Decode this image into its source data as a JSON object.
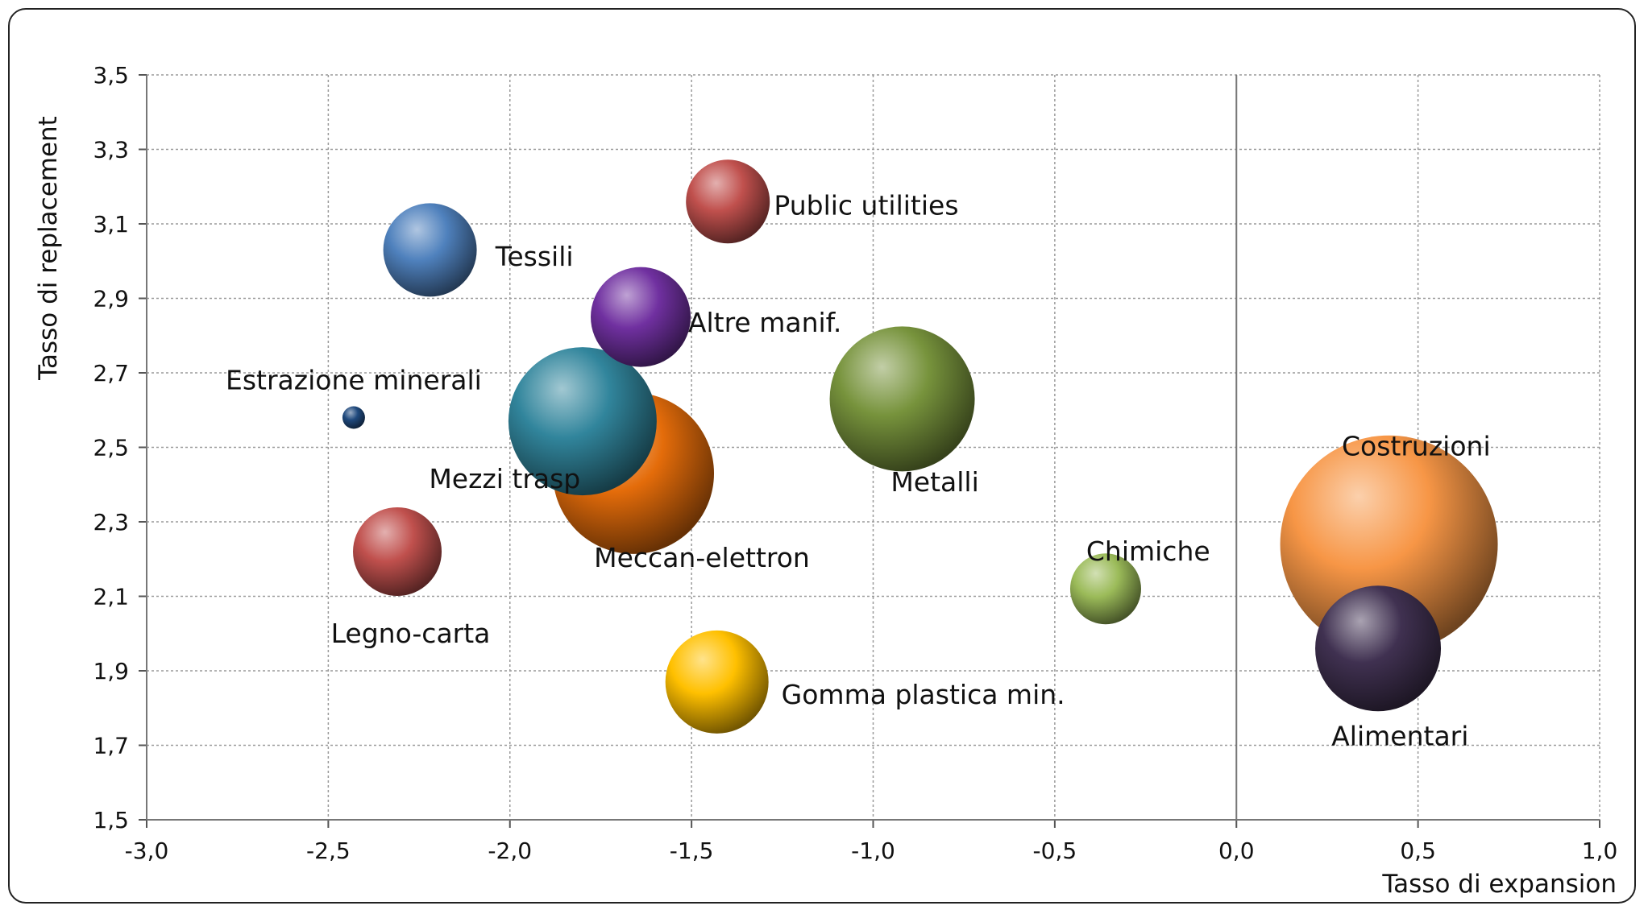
{
  "chart_data": {
    "type": "bubble",
    "xlabel": "Tasso di expansion",
    "ylabel": "Tasso di replacement",
    "xlim": [
      -3.0,
      1.0
    ],
    "ylim": [
      1.5,
      3.5
    ],
    "x_ticks": [
      "-3,0",
      "-2,5",
      "-2,0",
      "-1,5",
      "-1,0",
      "-0,5",
      "0,0",
      "0,5",
      "1,0"
    ],
    "y_ticks": [
      "3,5",
      "3,3",
      "3,1",
      "2,9",
      "2,7",
      "2,5",
      "2,3",
      "2,1",
      "1,9",
      "1,7",
      "1,5"
    ],
    "grid": true,
    "legend": "none",
    "points": [
      {
        "label": "Public utilities",
        "x": -1.4,
        "y": 3.16,
        "size": 52,
        "color": "#c0504d"
      },
      {
        "label": "Tessili",
        "x": -2.22,
        "y": 3.03,
        "size": 58,
        "color": "#4f81bd"
      },
      {
        "label": "Altre manif.",
        "x": -1.64,
        "y": 2.85,
        "size": 62,
        "color": "#7030a0"
      },
      {
        "label": "Estrazione minerali",
        "x": -2.43,
        "y": 2.58,
        "size": 14,
        "color": "#1f497d"
      },
      {
        "label": "Meccan-elettron",
        "x": -1.66,
        "y": 2.43,
        "size": 100,
        "color": "#e46c0a"
      },
      {
        "label": "Mezzi trasp",
        "x": -1.8,
        "y": 2.57,
        "size": 92,
        "color": "#31859c"
      },
      {
        "label": "Metalli",
        "x": -0.92,
        "y": 2.63,
        "size": 90,
        "color": "#77933c"
      },
      {
        "label": "Costruzioni",
        "x": 0.42,
        "y": 2.24,
        "size": 135,
        "color": "#f79646"
      },
      {
        "label": "Alimentari",
        "x": 0.39,
        "y": 1.96,
        "size": 78,
        "color": "#403151"
      },
      {
        "label": "Chimiche",
        "x": -0.36,
        "y": 2.12,
        "size": 44,
        "color": "#9bbb59"
      },
      {
        "label": "Legno-carta",
        "x": -2.31,
        "y": 2.22,
        "size": 55,
        "color": "#c0504d"
      },
      {
        "label": "Gomma plastica min.",
        "x": -1.43,
        "y": 1.87,
        "size": 64,
        "color": "#ffc000"
      }
    ]
  }
}
